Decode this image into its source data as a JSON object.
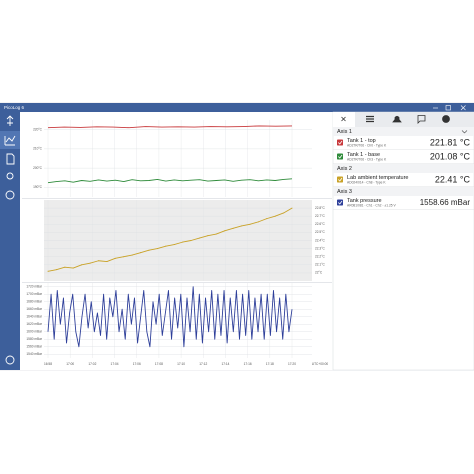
{
  "window": {
    "title": "PicoLog 6"
  },
  "chart": {
    "panels": [
      {
        "tick_side": "left",
        "shaded": false,
        "yticks": [
          {
            "value": 220,
            "label": "220°C"
          },
          {
            "value": 210,
            "label": "210°C"
          },
          {
            "value": 200,
            "label": "200°C"
          },
          {
            "value": 190,
            "label": "190°C"
          }
        ],
        "ylim": [
          185,
          225
        ],
        "series": [
          {
            "color": "#c8383b",
            "ylim": [
              210,
              223
            ],
            "values": [
              221.7,
              221.8,
              221.75,
              221.85,
              221.8,
              221.7,
              221.9,
              221.8,
              221.85,
              221.8,
              221.9,
              221.85,
              221.9,
              222.0,
              221.95,
              222.0
            ]
          },
          {
            "color": "#2e8b3a",
            "ylim": [
              195,
              223
            ],
            "values": [
              200.2,
              200.6,
              200.9,
              200.4,
              201.0,
              200.7,
              201.2,
              200.8,
              201.1,
              200.6,
              201.3,
              200.9,
              201.0,
              201.4,
              200.8,
              201.2,
              200.9,
              201.1,
              201.3,
              200.8,
              201.0,
              201.2,
              200.7,
              201.1,
              201.3,
              200.9,
              201.2,
              201.0,
              201.4,
              201.6
            ]
          }
        ]
      },
      {
        "tick_side": "right",
        "shaded": true,
        "yticks": [
          {
            "value": 22.8,
            "label": "22.8°C"
          },
          {
            "value": 22.7,
            "label": "22.7°C"
          },
          {
            "value": 22.6,
            "label": "22.6°C"
          },
          {
            "value": 22.5,
            "label": "22.5°C"
          },
          {
            "value": 22.4,
            "label": "22.4°C"
          },
          {
            "value": 22.3,
            "label": "22.3°C"
          },
          {
            "value": 22.2,
            "label": "22.2°C"
          },
          {
            "value": 22.1,
            "label": "22.1°C"
          },
          {
            "value": 22,
            "label": "22°C"
          }
        ],
        "ylim": [
          21.9,
          22.9
        ],
        "series": [
          {
            "color": "#c9a227",
            "ylim": [
              21.9,
              22.9
            ],
            "values": [
              22.02,
              22.04,
              22.07,
              22.06,
              22.1,
              22.12,
              22.15,
              22.14,
              22.18,
              22.2,
              22.22,
              22.25,
              22.28,
              22.3,
              22.33,
              22.35,
              22.38,
              22.4,
              22.43,
              22.46,
              22.48,
              22.52,
              22.55,
              22.58,
              22.6,
              22.63,
              22.67,
              22.7,
              22.74,
              22.8
            ]
          }
        ]
      },
      {
        "tick_side": "left",
        "shaded": false,
        "yticks": [
          {
            "value": 1720,
            "label": "1720 mBar"
          },
          {
            "value": 1700,
            "label": "1700 mBar"
          },
          {
            "value": 1680,
            "label": "1680 mBar"
          },
          {
            "value": 1660,
            "label": "1660 mBar"
          },
          {
            "value": 1640,
            "label": "1640 mBar"
          },
          {
            "value": 1620,
            "label": "1620 mBar"
          },
          {
            "value": 1600,
            "label": "1600 mBar"
          },
          {
            "value": 1580,
            "label": "1580 mBar"
          },
          {
            "value": 1560,
            "label": "1560 mBar"
          },
          {
            "value": 1540,
            "label": "1540 mBar"
          }
        ],
        "ylim": [
          1530,
          1730
        ],
        "series": [
          {
            "color": "#2e3f9a",
            "ylim": [
              1530,
              1730
            ],
            "values": [
              1600,
              1700,
              1580,
              1710,
              1620,
              1690,
              1570,
              1650,
              1700,
              1600,
              1560,
              1640,
              1700,
              1610,
              1680,
              1600,
              1650,
              1590,
              1700,
              1580,
              1690,
              1640,
              1710,
              1600,
              1660,
              1580,
              1700,
              1620,
              1690,
              1570,
              1640,
              1710,
              1600,
              1560,
              1680,
              1620,
              1700,
              1590,
              1650,
              1710,
              1580,
              1690,
              1610,
              1700,
              1560,
              1690,
              1600,
              1720,
              1580,
              1700,
              1570,
              1690,
              1600,
              1710,
              1580,
              1700,
              1590,
              1710,
              1570,
              1690,
              1600,
              1710,
              1580,
              1700,
              1590,
              1710,
              1580,
              1690,
              1600,
              1700,
              1580,
              1700,
              1590,
              1710,
              1600,
              1690,
              1580,
              1700,
              1600,
              1660
            ]
          }
        ]
      }
    ],
    "time_labels": [
      "16:58",
      "17:00",
      "17:02",
      "17:04",
      "17:06",
      "17:08",
      "17:10",
      "17:12",
      "17:14",
      "17:16",
      "17:18",
      "17:20"
    ],
    "timezone": "UTC+00:00"
  },
  "side_panel": {
    "axes": [
      {
        "name": "Axis 1",
        "channels": [
          {
            "name": "Tank 1 - top",
            "detail": "AD27R/706 - Ch0 - Type K",
            "reading": "221.81 °C",
            "color": "#c8383b"
          },
          {
            "name": "Tank 1 - base",
            "detail": "AD27R/706 - Ch3 - Type K",
            "reading": "201.08 °C",
            "color": "#2e8b3a"
          }
        ]
      },
      {
        "name": "Axis 2",
        "channels": [
          {
            "name": "Lab ambient temperature",
            "detail": "AD024/014 - Ch8 - Type K",
            "reading": "22.41 °C",
            "color": "#c9a227"
          }
        ]
      },
      {
        "name": "Axis 3",
        "channels": [
          {
            "name": "Tank pressure",
            "detail": "AR081/081 - Ch1 - Ch2 - ±1.25 V",
            "reading": "1558.66 mBar",
            "color": "#2e3f9a"
          }
        ]
      }
    ]
  }
}
